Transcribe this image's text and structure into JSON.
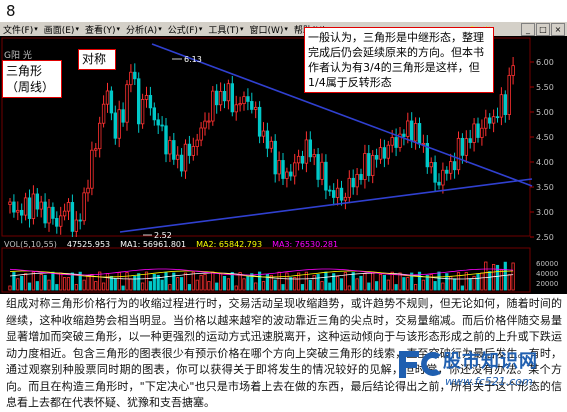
{
  "page_number": "8",
  "menubar": {
    "items": [
      {
        "label": "文件(F)",
        "name": "menu-file"
      },
      {
        "label": "画面(E)",
        "name": "menu-view"
      },
      {
        "label": "查看(Y)",
        "name": "menu-look"
      },
      {
        "label": "分析(A)",
        "name": "menu-analysis"
      },
      {
        "label": "公式(F)",
        "name": "menu-formula"
      },
      {
        "label": "工具(T)",
        "name": "menu-tools"
      },
      {
        "label": "窗口(W)",
        "name": "menu-window"
      },
      {
        "label": "帮助(H)",
        "name": "menu-help"
      }
    ],
    "window_buttons": [
      "_",
      "□",
      "×"
    ]
  },
  "chart": {
    "stock_label": "G阳 光",
    "right_title": "阳 光",
    "price_high_label": "6.13",
    "price_low_label": "2.52",
    "y_ticks": [
      "6.00",
      "5.50",
      "5.00",
      "4.50",
      "4.00",
      "3.50",
      "3.00",
      "2.50"
    ],
    "vol_ticks": [
      "60000",
      "40000",
      "20000"
    ],
    "vol_header": [
      {
        "text": "VOL(5,10,55)",
        "color": "#c0c0c0"
      },
      {
        "text": "47525.953",
        "color": "#ffffff"
      },
      {
        "text": "MA1: 56961.801",
        "color": "#ffffff"
      },
      {
        "text": "MA2: 65842.793",
        "color": "#ffff00"
      },
      {
        "text": "MA3: 76530.281",
        "color": "#ff00ff"
      }
    ],
    "colors": {
      "up": "#ff3030",
      "down": "#00c8c8",
      "trendline": "#3040d0",
      "background": "#000000"
    }
  },
  "annotations": {
    "triangle_label": "三角形\n（周线）",
    "symmetric_label": "对称",
    "note_text": "一般认为，三角形是中继形态，整理\n完成后仍会延续原来的方向。但本书\n作者认为有3/4的三角形是这样，但\n1/4属于反转形态"
  },
  "description": "组成对称三角形价格行为的收缩过程进行时，交易活动呈现收缩趋势，或许趋势不规则，但无论如何，随着时间的继续，这种收缩趋势会相当明显。当价格以越来越窄的波动靠近三角的尖点时，交易量缩减。而后价格伴随交易量显著增加而突破三角形，以一种更强烈的运动方式迅速脱离开，这种运动倾向于与该形态形成之前的上升或下跌运动力度相近。包含三角形的图表很少有预示价格在哪个方向上突破三角形的线索，直至突破行为最后发生。有时，通过观察别种股票同时期的图表，你可以获得关于即将发生的情况较好的见解，但时常，你还没有办法。某个方向。而且在构造三角形时，\"下定决心\"也只是市场着上去在做的东西，最后结论得出之前，所有关于这个形态的信息看上去都在代表怀疑、犹豫和支吾搪塞。",
  "watermark": {
    "title": "股市知识网",
    "url": "www.fc521.com"
  }
}
